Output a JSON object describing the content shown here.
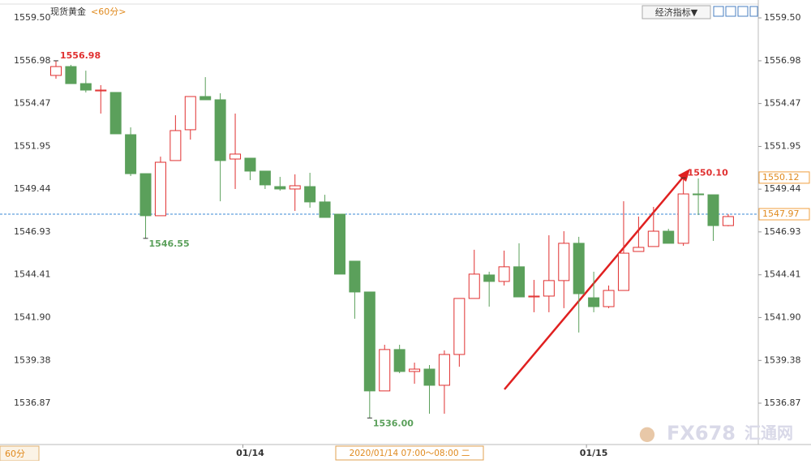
{
  "chart_data": {
    "type": "candlestick",
    "title": "现货黄金",
    "period": "<60分>",
    "up_color": "#e03030",
    "down_color": "#5ba05b",
    "price_line_color": "#3a8ad6",
    "ylim": [
      1534.44,
      1560.55
    ],
    "yticks": [
      {
        "value": 1559.5,
        "label": "1559.50"
      },
      1556.98,
      1554.47,
      1551.95,
      1549.44,
      1546.93,
      1544.41,
      {
        "value": 1541.9,
        "label": "1541.90"
      },
      1539.38,
      1536.87
    ],
    "categories": [
      null,
      null,
      null,
      null,
      null,
      null,
      null,
      null,
      null,
      null,
      null,
      null,
      null,
      "01/14",
      null,
      null,
      null,
      null,
      null,
      null,
      null,
      null,
      null,
      null,
      null,
      null,
      null,
      null,
      null,
      null,
      null,
      null,
      null,
      null,
      null,
      null,
      "01/15",
      null,
      null,
      null,
      null,
      null,
      null,
      null,
      null,
      null
    ],
    "candles": [
      {
        "open": 1556.12,
        "high": 1556.98,
        "low": 1555.93,
        "close": 1556.64,
        "mark": "high",
        "label": "1556.98"
      },
      {
        "open": 1556.64,
        "high": 1556.74,
        "low": 1555.64,
        "close": 1555.64
      },
      {
        "open": 1555.64,
        "high": 1556.4,
        "low": 1555.12,
        "close": 1555.26
      },
      {
        "open": 1555.21,
        "high": 1555.55,
        "low": 1553.88,
        "close": 1555.26
      },
      {
        "open": 1555.12,
        "high": 1555.12,
        "low": 1552.69,
        "close": 1552.69
      },
      {
        "open": 1552.64,
        "high": 1553.07,
        "low": 1550.21,
        "close": 1550.35
      },
      {
        "open": 1550.35,
        "high": 1550.35,
        "low": 1546.55,
        "close": 1547.88,
        "mark": "low",
        "label": "1546.55"
      },
      {
        "open": 1547.88,
        "high": 1551.35,
        "low": 1547.88,
        "close": 1551.02
      },
      {
        "open": 1551.12,
        "high": 1553.78,
        "low": 1551.12,
        "close": 1552.88
      },
      {
        "open": 1552.93,
        "high": 1554.88,
        "low": 1552.35,
        "close": 1554.88
      },
      {
        "open": 1554.88,
        "high": 1556.02,
        "low": 1554.69,
        "close": 1554.69
      },
      {
        "open": 1554.69,
        "high": 1555.07,
        "low": 1548.73,
        "close": 1551.12
      },
      {
        "open": 1551.21,
        "high": 1553.88,
        "low": 1549.45,
        "close": 1551.5
      },
      {
        "open": 1551.26,
        "high": 1551.26,
        "low": 1549.97,
        "close": 1550.5
      },
      {
        "open": 1550.5,
        "high": 1550.5,
        "low": 1549.45,
        "close": 1549.69
      },
      {
        "open": 1549.59,
        "high": 1550.16,
        "low": 1549.35,
        "close": 1549.45
      },
      {
        "open": 1549.45,
        "high": 1550.31,
        "low": 1548.16,
        "close": 1549.64
      },
      {
        "open": 1549.59,
        "high": 1550.4,
        "low": 1548.35,
        "close": 1548.69
      },
      {
        "open": 1548.69,
        "high": 1549.11,
        "low": 1547.78,
        "close": 1547.78
      },
      {
        "open": 1547.97,
        "high": 1547.97,
        "low": 1544.45,
        "close": 1544.45
      },
      {
        "open": 1545.21,
        "high": 1545.21,
        "low": 1541.83,
        "close": 1543.4
      },
      {
        "open": 1543.4,
        "high": 1543.4,
        "low": 1536.0,
        "close": 1537.59,
        "mark": "low",
        "label": "1536.00"
      },
      {
        "open": 1537.59,
        "high": 1540.3,
        "low": 1537.59,
        "close": 1540.02
      },
      {
        "open": 1540.02,
        "high": 1540.3,
        "low": 1538.63,
        "close": 1538.73
      },
      {
        "open": 1538.73,
        "high": 1539.25,
        "low": 1538.01,
        "close": 1538.87
      },
      {
        "open": 1538.87,
        "high": 1539.11,
        "low": 1536.25,
        "close": 1537.92
      },
      {
        "open": 1537.92,
        "high": 1539.97,
        "low": 1536.25,
        "close": 1539.73
      },
      {
        "open": 1539.73,
        "high": 1543.02,
        "low": 1539.01,
        "close": 1543.02
      },
      {
        "open": 1543.02,
        "high": 1545.88,
        "low": 1543.02,
        "close": 1544.45
      },
      {
        "open": 1544.4,
        "high": 1544.59,
        "low": 1542.54,
        "close": 1544.02
      },
      {
        "open": 1544.02,
        "high": 1545.83,
        "low": 1543.78,
        "close": 1544.88
      },
      {
        "open": 1544.88,
        "high": 1546.26,
        "low": 1543.11,
        "close": 1543.11
      },
      {
        "open": 1543.11,
        "high": 1544.11,
        "low": 1542.21,
        "close": 1543.16
      },
      {
        "open": 1543.16,
        "high": 1546.73,
        "low": 1542.21,
        "close": 1544.07
      },
      {
        "open": 1544.07,
        "high": 1546.97,
        "low": 1542.45,
        "close": 1546.26
      },
      {
        "open": 1546.26,
        "high": 1546.64,
        "low": 1541.02,
        "close": 1543.3
      },
      {
        "open": 1543.06,
        "high": 1544.59,
        "low": 1542.21,
        "close": 1542.54
      },
      {
        "open": 1542.54,
        "high": 1543.78,
        "low": 1542.45,
        "close": 1543.49
      },
      {
        "open": 1543.49,
        "high": 1548.73,
        "low": 1543.49,
        "close": 1545.68
      },
      {
        "open": 1545.78,
        "high": 1547.83,
        "low": 1545.78,
        "close": 1546.02
      },
      {
        "open": 1546.07,
        "high": 1548.4,
        "low": 1546.07,
        "close": 1546.97
      },
      {
        "open": 1546.97,
        "high": 1547.11,
        "low": 1546.26,
        "close": 1546.26
      },
      {
        "open": 1546.26,
        "high": 1550.1,
        "low": 1546.11,
        "close": 1549.16,
        "mark": "high",
        "label": "1550.10"
      },
      {
        "open": 1549.16,
        "high": 1550.07,
        "low": 1547.92,
        "close": 1549.11
      },
      {
        "open": 1549.11,
        "high": 1549.11,
        "low": 1546.4,
        "close": 1547.3
      },
      {
        "open": 1547.3,
        "high": 1547.97,
        "low": 1547.26,
        "close": 1547.83
      }
    ],
    "price_tags": [
      {
        "value": 1550.12,
        "label": "1550.12"
      },
      {
        "value": 1547.97,
        "label": "1547.97",
        "line": true
      }
    ]
  },
  "ui": {
    "toolbar_button": "经济指标▼",
    "period_selector": "60分",
    "crosshair_time": "2020/01/14 07:00～08:00 二",
    "watermark": "FX678",
    "watermark_site": "汇通网"
  }
}
